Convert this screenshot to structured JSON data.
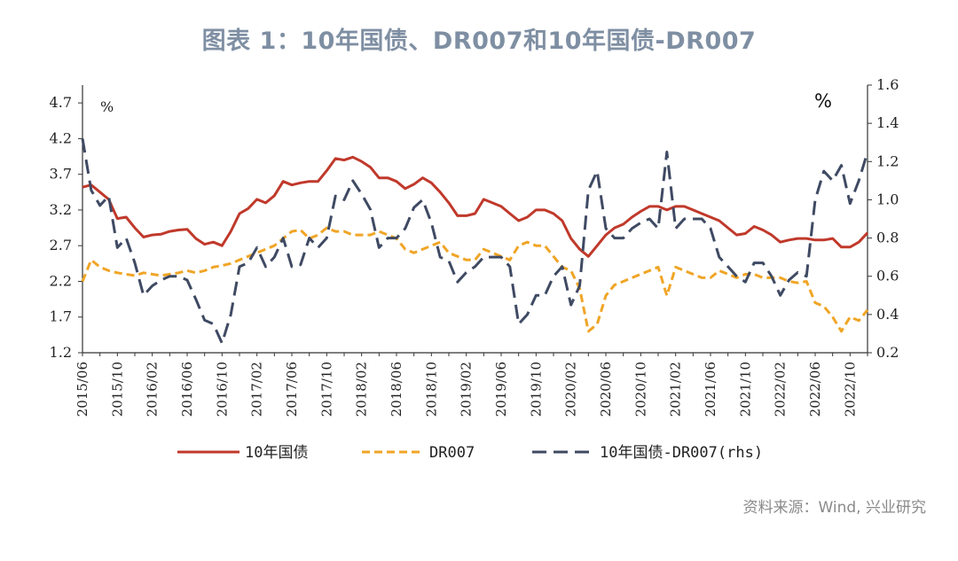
{
  "title": "图表 1：10年国债、DR007和10年国债-DR007",
  "source": "资料来源：Wind, 兴业研究",
  "chart_data": {
    "type": "line",
    "left_unit": "%",
    "right_unit": "%",
    "left_ticks": [
      "1.2",
      "1.7",
      "2.2",
      "2.7",
      "3.2",
      "3.7",
      "4.2",
      "4.7"
    ],
    "right_ticks": [
      "0.2",
      "0.4",
      "0.6",
      "0.8",
      "1.0",
      "1.2",
      "1.4",
      "1.6"
    ],
    "ylim_left": [
      1.2,
      4.95
    ],
    "ylim_right": [
      0.2,
      1.6
    ],
    "x_tick_labels": [
      "2015/06",
      "2015/10",
      "2016/02",
      "2016/06",
      "2016/10",
      "2017/02",
      "2017/06",
      "2017/10",
      "2018/02",
      "2018/06",
      "2018/10",
      "2019/02",
      "2019/06",
      "2019/10",
      "2020/02",
      "2020/06",
      "2020/10",
      "2021/02",
      "2021/06",
      "2021/10",
      "2022/02",
      "2022/06",
      "2022/10"
    ],
    "x": [
      "2015/06",
      "2015/07",
      "2015/08",
      "2015/09",
      "2015/10",
      "2015/11",
      "2015/12",
      "2016/01",
      "2016/02",
      "2016/03",
      "2016/04",
      "2016/05",
      "2016/06",
      "2016/07",
      "2016/08",
      "2016/09",
      "2016/10",
      "2016/11",
      "2016/12",
      "2017/01",
      "2017/02",
      "2017/03",
      "2017/04",
      "2017/05",
      "2017/06",
      "2017/07",
      "2017/08",
      "2017/09",
      "2017/10",
      "2017/11",
      "2017/12",
      "2018/01",
      "2018/02",
      "2018/03",
      "2018/04",
      "2018/05",
      "2018/06",
      "2018/07",
      "2018/08",
      "2018/09",
      "2018/10",
      "2018/11",
      "2018/12",
      "2019/01",
      "2019/02",
      "2019/03",
      "2019/04",
      "2019/05",
      "2019/06",
      "2019/07",
      "2019/08",
      "2019/09",
      "2019/10",
      "2019/11",
      "2019/12",
      "2020/01",
      "2020/02",
      "2020/03",
      "2020/04",
      "2020/05",
      "2020/06",
      "2020/07",
      "2020/08",
      "2020/09",
      "2020/10",
      "2020/11",
      "2020/12",
      "2021/01",
      "2021/02",
      "2021/03",
      "2021/04",
      "2021/05",
      "2021/06",
      "2021/07",
      "2021/08",
      "2021/09",
      "2021/10",
      "2021/11",
      "2021/12",
      "2022/01",
      "2022/02",
      "2022/03",
      "2022/04",
      "2022/05",
      "2022/06",
      "2022/07",
      "2022/08",
      "2022/09",
      "2022/10",
      "2022/11",
      "2022/12"
    ],
    "series": [
      {
        "name": "10年国债",
        "axis": "left",
        "color": "#c0392b",
        "dash": "solid",
        "values": [
          3.52,
          3.55,
          3.45,
          3.35,
          3.08,
          3.1,
          2.95,
          2.82,
          2.85,
          2.86,
          2.9,
          2.92,
          2.93,
          2.8,
          2.72,
          2.75,
          2.7,
          2.9,
          3.15,
          3.22,
          3.35,
          3.3,
          3.4,
          3.6,
          3.55,
          3.58,
          3.6,
          3.6,
          3.75,
          3.92,
          3.9,
          3.94,
          3.88,
          3.8,
          3.65,
          3.65,
          3.6,
          3.5,
          3.56,
          3.65,
          3.58,
          3.45,
          3.3,
          3.12,
          3.12,
          3.15,
          3.35,
          3.3,
          3.25,
          3.15,
          3.05,
          3.1,
          3.2,
          3.2,
          3.15,
          3.05,
          2.8,
          2.65,
          2.55,
          2.7,
          2.85,
          2.95,
          3.0,
          3.1,
          3.18,
          3.25,
          3.25,
          3.2,
          3.25,
          3.25,
          3.2,
          3.15,
          3.1,
          3.05,
          2.95,
          2.85,
          2.87,
          2.97,
          2.92,
          2.85,
          2.75,
          2.78,
          2.8,
          2.8,
          2.78,
          2.78,
          2.8,
          2.68,
          2.68,
          2.75,
          2.88
        ]
      },
      {
        "name": "DR007",
        "axis": "left",
        "color": "#f0a526",
        "dash": "dashed",
        "values": [
          2.2,
          2.5,
          2.4,
          2.35,
          2.32,
          2.3,
          2.28,
          2.32,
          2.3,
          2.28,
          2.3,
          2.32,
          2.35,
          2.32,
          2.35,
          2.4,
          2.42,
          2.45,
          2.5,
          2.55,
          2.6,
          2.65,
          2.7,
          2.8,
          2.9,
          2.92,
          2.8,
          2.85,
          2.95,
          2.9,
          2.9,
          2.85,
          2.85,
          2.85,
          2.9,
          2.85,
          2.8,
          2.65,
          2.6,
          2.65,
          2.7,
          2.75,
          2.6,
          2.55,
          2.5,
          2.5,
          2.65,
          2.6,
          2.55,
          2.5,
          2.7,
          2.75,
          2.7,
          2.7,
          2.55,
          2.4,
          2.35,
          2.1,
          1.5,
          1.6,
          2.0,
          2.15,
          2.2,
          2.25,
          2.3,
          2.35,
          2.4,
          2.0,
          2.4,
          2.35,
          2.3,
          2.25,
          2.25,
          2.35,
          2.3,
          2.25,
          2.3,
          2.3,
          2.25,
          2.25,
          2.25,
          2.2,
          2.18,
          2.2,
          1.9,
          1.85,
          1.7,
          1.5,
          1.7,
          1.65,
          1.8
        ]
      },
      {
        "name": "10年国债-DR007(rhs)",
        "axis": "right",
        "color": "#3f4a63",
        "dash": "longdash",
        "values": [
          1.32,
          1.05,
          0.97,
          1.02,
          0.75,
          0.8,
          0.67,
          0.5,
          0.55,
          0.58,
          0.6,
          0.6,
          0.58,
          0.48,
          0.37,
          0.35,
          0.25,
          0.4,
          0.65,
          0.67,
          0.75,
          0.65,
          0.7,
          0.8,
          0.65,
          0.66,
          0.8,
          0.75,
          0.8,
          1.02,
          1.0,
          1.1,
          1.03,
          0.95,
          0.75,
          0.8,
          0.8,
          0.85,
          0.96,
          1.0,
          0.88,
          0.7,
          0.68,
          0.57,
          0.62,
          0.65,
          0.7,
          0.7,
          0.7,
          0.65,
          0.35,
          0.4,
          0.5,
          0.5,
          0.6,
          0.65,
          0.45,
          0.55,
          1.05,
          1.15,
          0.85,
          0.8,
          0.8,
          0.85,
          0.88,
          0.9,
          0.85,
          1.25,
          0.85,
          0.9,
          0.9,
          0.9,
          0.85,
          0.7,
          0.65,
          0.6,
          0.57,
          0.67,
          0.67,
          0.6,
          0.5,
          0.58,
          0.62,
          0.6,
          1.0,
          1.15,
          1.1,
          1.18,
          0.98,
          1.1,
          1.25
        ]
      }
    ],
    "legend_position": "bottom"
  }
}
